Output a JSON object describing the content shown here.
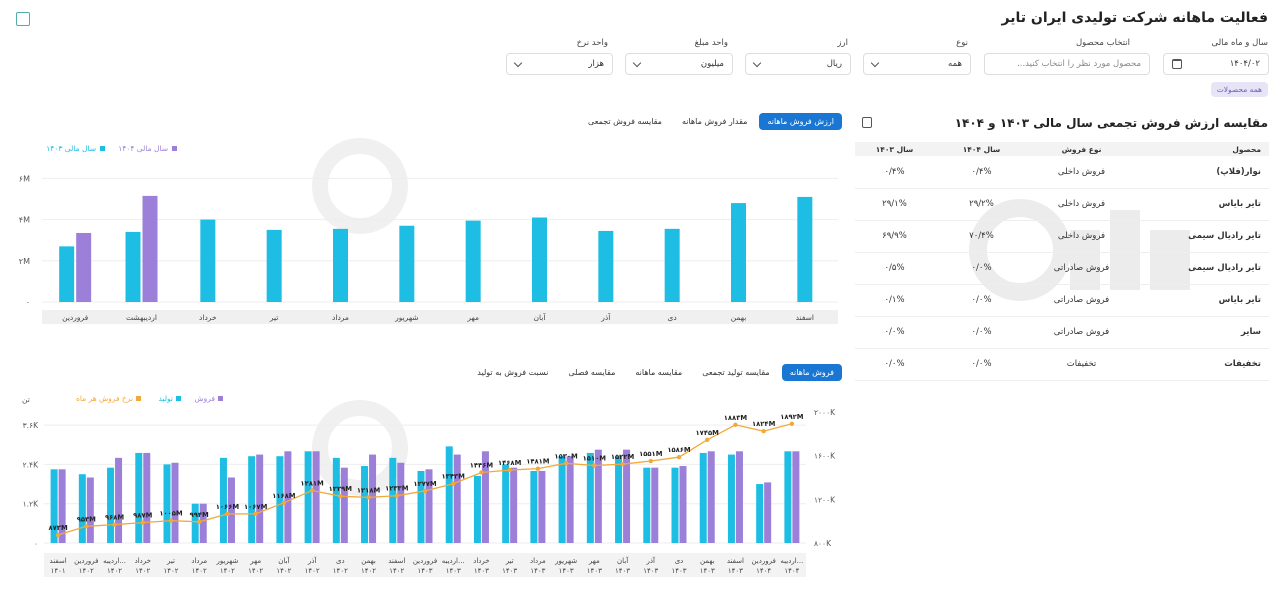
{
  "page": {
    "title": "فعالیت ماهانه شرکت تولیدی ایران تایر"
  },
  "filters": {
    "year_month": {
      "label": "سال و ماه مالی",
      "value": "۱۴۰۴/۰۲"
    },
    "product": {
      "label": "انتخاب محصول",
      "placeholder": "محصول مورد نظر را انتخاب کنید..."
    },
    "type": {
      "label": "نوع",
      "value": "همه"
    },
    "currency": {
      "label": "ارز",
      "value": "ریال"
    },
    "amount_unit": {
      "label": "واحد مبلغ",
      "value": "میلیون"
    },
    "rate_unit": {
      "label": "واحد نرخ",
      "value": "هزار"
    },
    "all_products_tag": "همه محصولات"
  },
  "top_tabs": [
    "ارزش فروش ماهانه",
    "مقدار فروش ماهانه",
    "مقایسه فروش تجمعی"
  ],
  "bottom_tabs": [
    "فروش ماهانه",
    "مقایسه تولید تجمعی",
    "مقایسه ماهانه",
    "مقایسه فصلی",
    "نسبت فروش به تولید"
  ],
  "table": {
    "title": "مقایسه ارزش فروش تجمعی سال مالی ۱۴۰۳ و ۱۴۰۴",
    "headers": [
      "محصول",
      "نوع فروش",
      "سال ۱۴۰۴",
      "سال ۱۴۰۳"
    ],
    "rows": [
      [
        "نوار(فلاپ)",
        "فروش داخلی",
        "۰/۴%",
        "۰/۴%"
      ],
      [
        "تایر بایاس",
        "فروش داخلی",
        "۲۹/۲%",
        "۲۹/۱%"
      ],
      [
        "تایر رادیال سیمی",
        "فروش داخلی",
        "۷۰/۴%",
        "۶۹/۹%"
      ],
      [
        "تایر رادیال سیمی",
        "فروش صادراتی",
        "۰/۰%",
        "۰/۵%"
      ],
      [
        "تایر بایاس",
        "فروش صادراتی",
        "۰/۰%",
        "۰/۱%"
      ],
      [
        "سایر",
        "فروش صادراتی",
        "۰/۰%",
        "۰/۰%"
      ],
      [
        "تخفیفات",
        "تخفیفات",
        "۰/۰%",
        "۰/۰%"
      ]
    ]
  },
  "colors": {
    "cyan": "#1ebde3",
    "purple": "#9b7fd8",
    "orange": "#f2a93b",
    "accent": "#1976d2"
  },
  "chart_data": [
    {
      "type": "bar",
      "legend": [
        "سال مالی ۱۴۰۳",
        "سال مالی ۱۴۰۴"
      ],
      "categories": [
        "فروردین",
        "اردیبهشت",
        "خرداد",
        "تیر",
        "مرداد",
        "شهریور",
        "مهر",
        "آبان",
        "آذر",
        "دی",
        "بهمن",
        "اسفند"
      ],
      "yticks": [
        "۰",
        "۲M",
        "۴M",
        "۶M"
      ],
      "ylim": [
        0,
        6.6
      ],
      "series": [
        {
          "name": "سال مالی ۱۴۰۳",
          "values": [
            2.7,
            3.4,
            4.0,
            3.5,
            3.55,
            3.7,
            3.95,
            4.1,
            3.45,
            3.55,
            4.8,
            5.1
          ]
        },
        {
          "name": "سال مالی ۱۴۰۴",
          "values": [
            3.35,
            5.15,
            null,
            null,
            null,
            null,
            null,
            null,
            null,
            null,
            null,
            null
          ]
        }
      ]
    },
    {
      "type": "bar",
      "legend": [
        "فروش",
        "تولید",
        "نرخ فروش هر ماه"
      ],
      "yleft_label": "تن",
      "yleft_ticks": [
        "۰",
        "۱.۲K",
        "۲.۴K",
        "۳.۶K"
      ],
      "yright_ticks": [
        "۸۰۰K",
        "۱۲۰۰K",
        "۱۶۰۰K",
        "۲۰۰۰K"
      ],
      "categories": [
        [
          "اسفند",
          "۱۴۰۱"
        ],
        [
          "فروردین",
          "۱۴۰۲"
        ],
        [
          "اردیبه...",
          "۱۴۰۲"
        ],
        [
          "خرداد",
          "۱۴۰۲"
        ],
        [
          "تیر",
          "۱۴۰۲"
        ],
        [
          "مرداد",
          "۱۴۰۲"
        ],
        [
          "شهریور",
          "۱۴۰۲"
        ],
        [
          "مهر",
          "۱۴۰۲"
        ],
        [
          "آبان",
          "۱۴۰۲"
        ],
        [
          "آذر",
          "۱۴۰۲"
        ],
        [
          "دی",
          "۱۴۰۲"
        ],
        [
          "بهمن",
          "۱۴۰۲"
        ],
        [
          "اسفند",
          "۱۴۰۲"
        ],
        [
          "فروردین",
          "۱۴۰۳"
        ],
        [
          "اردیبه...",
          "۱۴۰۳"
        ],
        [
          "خرداد",
          "۱۴۰۳"
        ],
        [
          "تیر",
          "۱۴۰۳"
        ],
        [
          "مرداد",
          "۱۴۰۳"
        ],
        [
          "شهریور",
          "۱۴۰۳"
        ],
        [
          "مهر",
          "۱۴۰۳"
        ],
        [
          "آبان",
          "۱۴۰۳"
        ],
        [
          "آذر",
          "۱۴۰۳"
        ],
        [
          "دی",
          "۱۴۰۳"
        ],
        [
          "بهمن",
          "۱۴۰۳"
        ],
        [
          "اسفند",
          "۱۴۰۳"
        ],
        [
          "فروردین",
          "۱۴۰۴"
        ],
        [
          "اردیبه...",
          "۱۴۰۴"
        ]
      ],
      "ylim": [
        0,
        4.0
      ],
      "y2lim": [
        800,
        2000
      ],
      "series": [
        {
          "name": "فروش",
          "values": [
            2.25,
            2.0,
            2.6,
            2.75,
            2.45,
            1.2,
            2.0,
            2.7,
            2.8,
            2.8,
            2.3,
            2.7,
            2.45,
            2.25,
            2.7,
            2.8,
            2.3,
            2.2,
            2.65,
            2.85,
            2.85,
            2.3,
            2.35,
            2.8,
            2.8,
            1.85,
            2.8
          ]
        },
        {
          "name": "تولید",
          "values": [
            2.25,
            2.1,
            2.3,
            2.75,
            2.4,
            1.2,
            2.6,
            2.65,
            2.65,
            2.8,
            2.6,
            2.35,
            2.6,
            2.2,
            2.95,
            2.05,
            2.4,
            2.2,
            2.65,
            2.75,
            2.65,
            2.3,
            2.3,
            2.75,
            2.7,
            1.8,
            2.8
          ]
        },
        {
          "name": "نرخ فروش هر ماه",
          "values": [
            873,
            953,
            968,
            987,
            1005,
            994,
            1066,
            1067,
            1168,
            1281,
            1229,
            1218,
            1233,
            1277,
            1343,
            1446,
            1468,
            1481,
            1530,
            1510,
            1522,
            1551,
            1586,
            1745,
            1883,
            1824,
            1892
          ]
        }
      ],
      "rate_labels": [
        "۸۷۳M",
        "۹۵۳M",
        "۹۶۸M",
        "۹۸۷M",
        "۱۰۰۵M",
        "۹۹۴M",
        "۱۰۶۶M",
        "۱۰۶۷M",
        "۱۱۶۸M",
        "۱۲۸۱M",
        "۱۲۲۹M",
        "۱۲۱۸M",
        "۱۲۳۳M",
        "۱۲۷۷M",
        "۱۳۴۳M",
        "۱۴۴۶M",
        "۱۴۶۸M",
        "۱۴۸۱M",
        "۱۵۳۰M",
        "۱۵۱۰M",
        "۱۵۲۲M",
        "۱۵۵۱M",
        "۱۵۸۶M",
        "۱۷۴۵M",
        "۱۸۸۳M",
        "۱۸۲۴M",
        "۱۸۹۲M"
      ]
    }
  ]
}
